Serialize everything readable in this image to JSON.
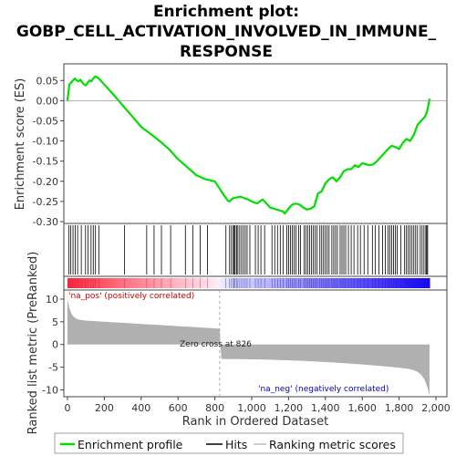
{
  "chart_data": {
    "type": "line",
    "title_lines": [
      "Enrichment plot:",
      "GOBP_CELL_ACTIVATION_INVOLVED_IN_IMMUNE_",
      "RESPONSE"
    ],
    "xlabel": "Rank in Ordered Dataset",
    "ylabel_top": "Enrichment score (ES)",
    "ylabel_bottom": "Ranked list metric (PreRanked)",
    "xlim": [
      0,
      2000
    ],
    "xticks": [
      0,
      200,
      400,
      600,
      800,
      1000,
      1200,
      1400,
      1600,
      1800,
      2000
    ],
    "xtick_labels": [
      "0",
      "200",
      "400",
      "600",
      "800",
      "1,000",
      "1,200",
      "1,400",
      "1,600",
      "1,800",
      "2,000"
    ],
    "es_ylim": [
      -0.3,
      0.08
    ],
    "es_yticks": [
      0.05,
      0.0,
      -0.05,
      -0.1,
      -0.15,
      -0.2,
      -0.25,
      -0.3
    ],
    "es_ytick_labels": [
      "0.05",
      "0.00",
      "-0.05",
      "-0.10",
      "-0.15",
      "-0.20",
      "-0.25",
      "-0.30"
    ],
    "metric_ylim": [
      -11.5,
      12
    ],
    "metric_yticks": [
      10,
      5,
      0,
      -5,
      -10
    ],
    "metric_ytick_labels": [
      "10",
      "5",
      "0",
      "-5",
      "-10"
    ],
    "n_genes": 1965,
    "zero_cross": 826,
    "zero_cross_label": "Zero cross at 826",
    "pos_label": "'na_pos' (positively correlated)",
    "neg_label": "'na_neg' (negatively correlated)",
    "series": [
      {
        "name": "Enrichment profile",
        "color": "#00dd00",
        "x": [
          0,
          10,
          20,
          30,
          40,
          50,
          60,
          70,
          80,
          90,
          100,
          110,
          120,
          130,
          140,
          150,
          160,
          170,
          180,
          200,
          250,
          300,
          350,
          400,
          450,
          500,
          550,
          600,
          650,
          700,
          750,
          800,
          850,
          870,
          880,
          890,
          900,
          920,
          940,
          960,
          980,
          1000,
          1030,
          1050,
          1060,
          1080,
          1100,
          1120,
          1150,
          1170,
          1180,
          1200,
          1210,
          1220,
          1240,
          1260,
          1280,
          1300,
          1320,
          1340,
          1360,
          1380,
          1400,
          1420,
          1440,
          1460,
          1480,
          1500,
          1520,
          1540,
          1560,
          1580,
          1600,
          1620,
          1640,
          1660,
          1680,
          1700,
          1720,
          1740,
          1760,
          1780,
          1800,
          1820,
          1840,
          1860,
          1880,
          1900,
          1920,
          1940,
          1950,
          1960,
          1965
        ],
        "y": [
          0.0,
          0.04,
          0.045,
          0.05,
          0.055,
          0.05,
          0.048,
          0.052,
          0.045,
          0.04,
          0.038,
          0.045,
          0.05,
          0.048,
          0.055,
          0.06,
          0.058,
          0.055,
          0.05,
          0.04,
          0.015,
          -0.012,
          -0.038,
          -0.065,
          -0.082,
          -0.1,
          -0.12,
          -0.145,
          -0.165,
          -0.185,
          -0.195,
          -0.2,
          -0.235,
          -0.248,
          -0.25,
          -0.245,
          -0.242,
          -0.24,
          -0.238,
          -0.242,
          -0.245,
          -0.25,
          -0.255,
          -0.248,
          -0.245,
          -0.255,
          -0.265,
          -0.268,
          -0.272,
          -0.275,
          -0.28,
          -0.268,
          -0.262,
          -0.258,
          -0.255,
          -0.258,
          -0.265,
          -0.27,
          -0.268,
          -0.262,
          -0.23,
          -0.225,
          -0.205,
          -0.195,
          -0.19,
          -0.2,
          -0.19,
          -0.175,
          -0.17,
          -0.17,
          -0.16,
          -0.165,
          -0.155,
          -0.158,
          -0.16,
          -0.158,
          -0.15,
          -0.14,
          -0.13,
          -0.12,
          -0.112,
          -0.115,
          -0.12,
          -0.105,
          -0.095,
          -0.1,
          -0.085,
          -0.06,
          -0.05,
          -0.04,
          -0.03,
          -0.01,
          0.005
        ]
      }
    ],
    "hits": [
      8,
      18,
      30,
      42,
      55,
      75,
      98,
      112,
      128,
      140,
      152,
      170,
      310,
      430,
      470,
      510,
      560,
      640,
      680,
      720,
      760,
      860,
      880,
      890,
      900,
      905,
      910,
      918,
      925,
      935,
      945,
      955,
      965,
      975,
      990,
      1020,
      1035,
      1050,
      1070,
      1110,
      1125,
      1140,
      1155,
      1170,
      1190,
      1200,
      1210,
      1220,
      1230,
      1240,
      1255,
      1265,
      1285,
      1295,
      1305,
      1315,
      1325,
      1335,
      1345,
      1355,
      1370,
      1380,
      1390,
      1400,
      1410,
      1420,
      1435,
      1445,
      1455,
      1465,
      1480,
      1490,
      1500,
      1510,
      1525,
      1540,
      1555,
      1575,
      1590,
      1610,
      1630,
      1655,
      1670,
      1690,
      1710,
      1725,
      1740,
      1750,
      1760,
      1770,
      1780,
      1790,
      1810,
      1830,
      1840,
      1850,
      1860,
      1870,
      1880,
      1890,
      1900,
      1915,
      1925,
      1935,
      1945,
      1950,
      1955
    ],
    "legend": [
      "Enrichment profile",
      "Hits",
      "Ranking metric scores"
    ]
  }
}
